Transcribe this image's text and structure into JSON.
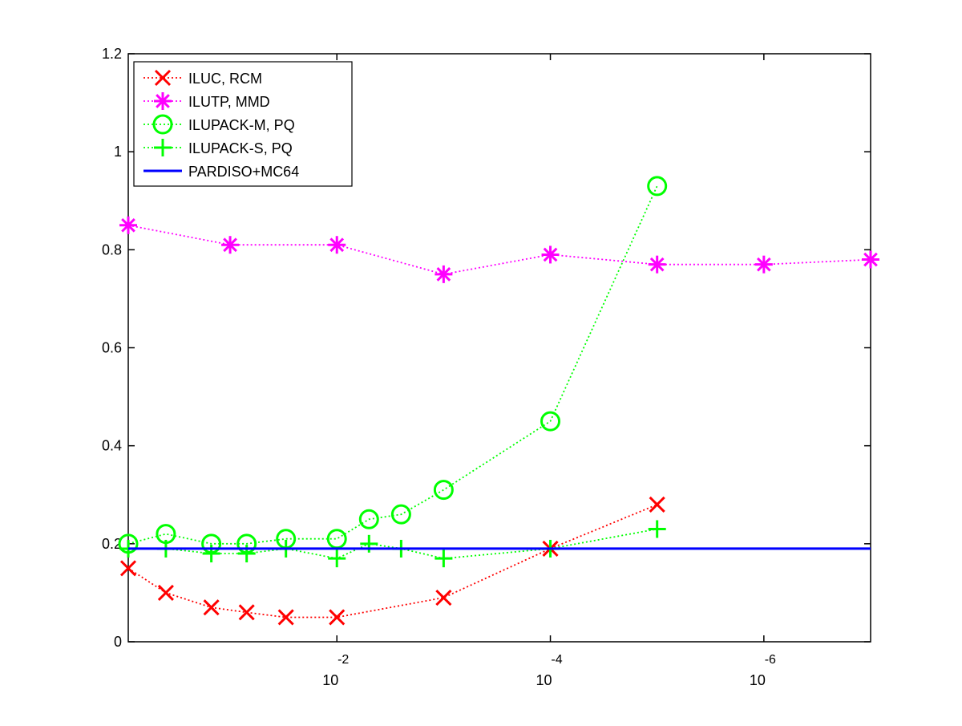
{
  "chart_data": {
    "type": "line",
    "title": "",
    "xlabel": "",
    "ylabel": "",
    "x_scale": "log-reversed",
    "xlim": [
      0.9,
      1e-07
    ],
    "ylim": [
      0,
      1.2
    ],
    "grid": false,
    "legend_position": "top-left",
    "x_ticks": [
      {
        "base": "10",
        "exp": "-2",
        "value": 0.01
      },
      {
        "base": "10",
        "exp": "-4",
        "value": 0.0001
      },
      {
        "base": "10",
        "exp": "-6",
        "value": 1e-06
      }
    ],
    "y_ticks": [
      "0",
      "0.2",
      "0.4",
      "0.6",
      "0.8",
      "1",
      "1.2"
    ],
    "y_tick_values": [
      0,
      0.2,
      0.4,
      0.6,
      0.8,
      1.0,
      1.2
    ],
    "series": [
      {
        "name": "ILUC, RCM",
        "color": "#ff0000",
        "marker": "x",
        "line": "dotted",
        "points": [
          [
            0.9,
            0.15
          ],
          [
            0.4,
            0.1
          ],
          [
            0.15,
            0.07
          ],
          [
            0.07,
            0.06
          ],
          [
            0.03,
            0.05
          ],
          [
            0.01,
            0.05
          ],
          [
            0.001,
            0.09
          ],
          [
            0.0001,
            0.19
          ],
          [
            1e-05,
            0.28
          ]
        ]
      },
      {
        "name": "ILUTP, MMD",
        "color": "#ff00ff",
        "marker": "asterisk",
        "line": "dotted",
        "points": [
          [
            0.9,
            0.85
          ],
          [
            0.1,
            0.81
          ],
          [
            0.01,
            0.81
          ],
          [
            0.001,
            0.75
          ],
          [
            0.0001,
            0.79
          ],
          [
            1e-05,
            0.77
          ],
          [
            1e-06,
            0.77
          ],
          [
            1e-07,
            0.78
          ]
        ]
      },
      {
        "name": "ILUPACK-M, PQ",
        "color": "#00ff00",
        "marker": "circle",
        "line": "dotted",
        "points": [
          [
            0.9,
            0.2
          ],
          [
            0.4,
            0.22
          ],
          [
            0.15,
            0.2
          ],
          [
            0.07,
            0.2
          ],
          [
            0.03,
            0.21
          ],
          [
            0.01,
            0.21
          ],
          [
            0.005,
            0.25
          ],
          [
            0.0025,
            0.26
          ],
          [
            0.001,
            0.31
          ],
          [
            0.0001,
            0.45
          ],
          [
            1e-05,
            0.93
          ]
        ]
      },
      {
        "name": "ILUPACK-S, PQ",
        "color": "#00ff00",
        "marker": "plus",
        "line": "dotted",
        "points": [
          [
            0.9,
            0.19
          ],
          [
            0.4,
            0.19
          ],
          [
            0.15,
            0.18
          ],
          [
            0.07,
            0.18
          ],
          [
            0.03,
            0.19
          ],
          [
            0.01,
            0.17
          ],
          [
            0.005,
            0.2
          ],
          [
            0.0025,
            0.19
          ],
          [
            0.001,
            0.17
          ],
          [
            0.0001,
            0.19
          ],
          [
            1e-05,
            0.23
          ]
        ]
      },
      {
        "name": "PARDISO+MC64",
        "color": "#0000ff",
        "marker": "none",
        "line": "solid",
        "points": [
          [
            0.9,
            0.19
          ],
          [
            1e-07,
            0.19
          ]
        ]
      }
    ]
  }
}
